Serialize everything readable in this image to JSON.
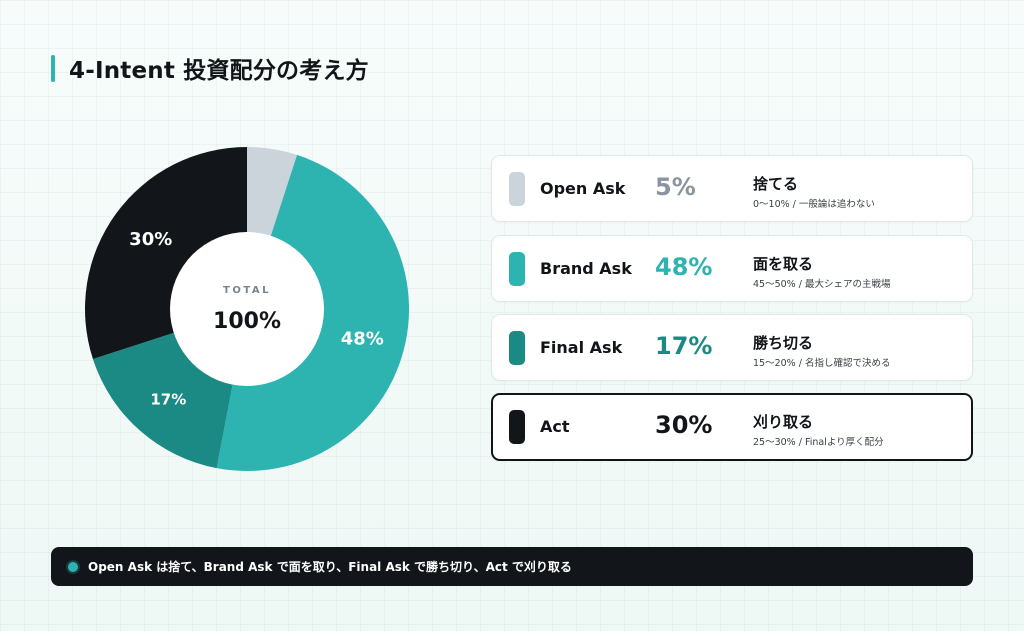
{
  "title": "4-Intent 投資配分の考え方",
  "colors": {
    "accent": "#2db3b0",
    "open_ask": "#cbd3db",
    "brand_ask": "#2db3b0",
    "final_ask": "#1b8984",
    "act": "#121519"
  },
  "chart_data": {
    "type": "pie",
    "center_label": "TOTAL",
    "center_value": "100%",
    "categories": [
      "Open Ask",
      "Brand Ask",
      "Final Ask",
      "Act"
    ],
    "values": [
      5,
      48,
      17,
      30
    ],
    "slice_labels": [
      "",
      "48%",
      "17%",
      "30%"
    ],
    "colors": [
      "#cbd3db",
      "#2db3b0",
      "#1b8984",
      "#121519"
    ],
    "legend_placement": "right"
  },
  "cards": [
    {
      "name": "Open Ask",
      "percent": "5%",
      "title": "捨てる",
      "subtitle": "0〜10% / 一般論は追わない",
      "color": "#cbd3db",
      "pct_color": "#8b949e"
    },
    {
      "name": "Brand Ask",
      "percent": "48%",
      "title": "面を取る",
      "subtitle": "45〜50% / 最大シェアの主戦場",
      "color": "#2db3b0",
      "pct_color": "#2db3b0"
    },
    {
      "name": "Final Ask",
      "percent": "17%",
      "title": "勝ち切る",
      "subtitle": "15〜20% / 名指し確認で決める",
      "color": "#1b8984",
      "pct_color": "#1b8984"
    },
    {
      "name": "Act",
      "percent": "30%",
      "title": "刈り取る",
      "subtitle": "25〜30% / Finalより厚く配分",
      "color": "#121519",
      "pct_color": "#121519"
    }
  ],
  "footer": {
    "text": "Open Ask は捨て、Brand Ask で面を取り、Final Ask で勝ち切り、Act で刈り取る"
  }
}
